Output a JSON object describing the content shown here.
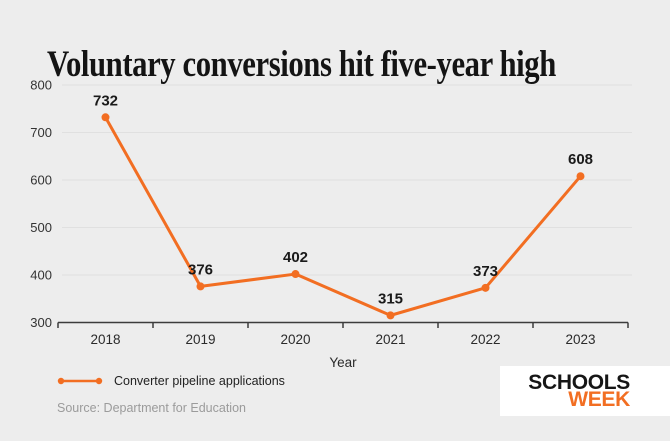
{
  "title": "Voluntary conversions hit five-year high",
  "chart_data": {
    "type": "line",
    "title": "Voluntary conversions hit five-year high",
    "categories": [
      "2018",
      "2019",
      "2020",
      "2021",
      "2022",
      "2023"
    ],
    "series": [
      {
        "name": "Converter pipeline applications",
        "values": [
          732,
          376,
          402,
          315,
          373,
          608
        ]
      }
    ],
    "xlabel": "Year",
    "ylabel": "",
    "ylim": [
      300,
      800
    ],
    "yticks": [
      300,
      400,
      500,
      600,
      700,
      800
    ],
    "grid": true,
    "data_labels": true,
    "legend_position": "bottom-left"
  },
  "legend": {
    "label": "Converter pipeline applications"
  },
  "source_text": "Source: Department for Education",
  "logo": {
    "line1": "SCHOOLS",
    "line2": "WEEK"
  },
  "colors": {
    "background": "#EDEDED",
    "accent": "#F26E22",
    "text": "#1A1A1A",
    "tick_text": "#333333",
    "muted": "#9B9B9B",
    "gridline": "#E0E0E0",
    "axis": "#3C3C3C",
    "logo_bg": "#FFFFFF",
    "logo_text": "#161616"
  }
}
